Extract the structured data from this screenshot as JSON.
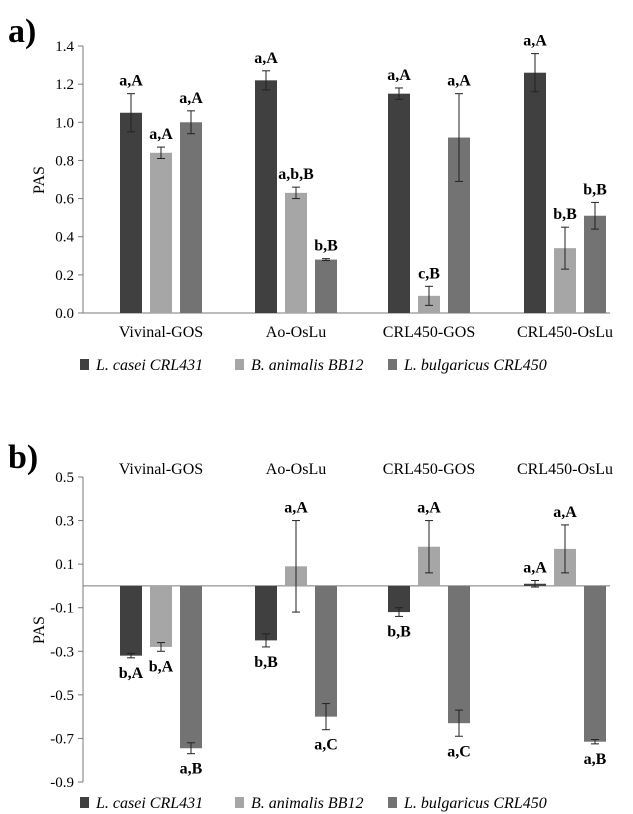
{
  "colors": [
    "#404040",
    "#a6a6a6",
    "#737373"
  ],
  "chart_data": [
    {
      "panel": "a)",
      "type": "bar",
      "ylabel": "PAS",
      "ylim": [
        0,
        1.4
      ],
      "yticks": [
        0.0,
        0.2,
        0.4,
        0.6,
        0.8,
        1.0,
        1.2,
        1.4
      ],
      "tick_decimals": 1,
      "category_label_position": "bottom",
      "legend_position": "bottom",
      "grid": false,
      "categories": [
        "Vivinal-GOS",
        "Ao-OsLu",
        "CRL450-GOS",
        "CRL450-OsLu"
      ],
      "series": [
        {
          "name": "L. casei CRL431",
          "values": [
            1.05,
            1.22,
            1.15,
            1.26
          ],
          "errors": [
            0.1,
            0.05,
            0.03,
            0.1
          ],
          "labels": [
            "a,A",
            "a,A",
            "a,A",
            "a,A"
          ]
        },
        {
          "name": "B. animalis BB12",
          "values": [
            0.84,
            0.63,
            0.09,
            0.34
          ],
          "errors": [
            0.03,
            0.03,
            0.05,
            0.11
          ],
          "labels": [
            "a,A",
            "a,b,B",
            "c,B",
            "b,B"
          ]
        },
        {
          "name": "L. bulgaricus CRL450",
          "values": [
            1.0,
            0.28,
            0.92,
            0.51
          ],
          "errors": [
            0.06,
            0.005,
            0.23,
            0.07
          ],
          "labels": [
            "a,A",
            "b,B",
            "a,A",
            "b,B"
          ]
        }
      ]
    },
    {
      "panel": "b)",
      "type": "bar",
      "ylabel": "PAS",
      "ylim": [
        -0.9,
        0.5
      ],
      "yticks": [
        -0.9,
        -0.7,
        -0.5,
        -0.3,
        -0.1,
        0.1,
        0.3,
        0.5
      ],
      "tick_decimals": 1,
      "category_label_position": "top",
      "legend_position": "bottom",
      "grid": false,
      "categories": [
        "Vivinal-GOS",
        "Ao-OsLu",
        "CRL450-GOS",
        "CRL450-OsLu"
      ],
      "series": [
        {
          "name": "L. casei CRL431",
          "values": [
            -0.32,
            -0.25,
            -0.12,
            0.01
          ],
          "errors": [
            0.01,
            0.03,
            0.02,
            0.015
          ],
          "labels": [
            "b,A",
            "b,B",
            "b,B",
            "a,A"
          ]
        },
        {
          "name": "B. animalis BB12",
          "values": [
            -0.28,
            0.09,
            0.18,
            0.17
          ],
          "errors": [
            0.02,
            0.21,
            0.12,
            0.11
          ],
          "labels": [
            "b,A",
            "a,A",
            "a,A",
            "a,A"
          ]
        },
        {
          "name": "L. bulgaricus CRL450",
          "values": [
            -0.745,
            -0.6,
            -0.63,
            -0.715
          ],
          "errors": [
            0.025,
            0.06,
            0.06,
            0.01
          ],
          "labels": [
            "a,B",
            "a,C",
            "a,C",
            "a,B"
          ]
        }
      ]
    }
  ]
}
